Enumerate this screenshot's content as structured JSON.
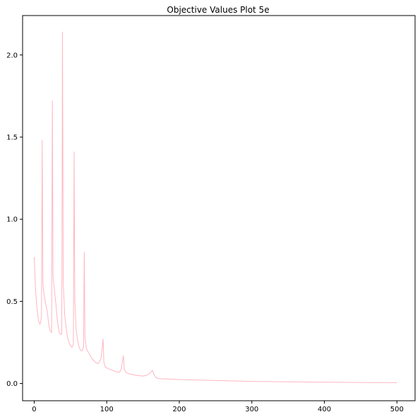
{
  "chart_data": {
    "type": "line",
    "title": "Objective Values Plot 5e",
    "xlabel": "",
    "ylabel": "",
    "xlim": [
      -16,
      525
    ],
    "ylim": [
      -0.105,
      2.24
    ],
    "xticks": [
      0,
      100,
      200,
      300,
      400,
      500
    ],
    "xtick_labels": [
      "0",
      "100",
      "200",
      "300",
      "400",
      "500"
    ],
    "yticks": [
      0.0,
      0.5,
      1.0,
      1.5,
      2.0
    ],
    "ytick_labels": [
      "0.0",
      "0.5",
      "1.0",
      "1.5",
      "2.0"
    ],
    "grid": false,
    "line_color": "#ffb6c1",
    "series": [
      {
        "x": [
          0,
          2,
          4,
          6,
          8,
          10,
          11,
          12,
          14,
          16,
          18,
          20,
          22,
          24,
          25,
          26,
          28,
          30,
          32,
          34,
          36,
          38,
          39,
          40,
          42,
          44,
          46,
          48,
          50,
          52,
          54,
          55,
          56,
          58,
          60,
          62,
          64,
          66,
          68,
          69,
          70,
          72,
          76,
          80,
          84,
          88,
          92,
          95,
          96,
          98,
          102,
          108,
          114,
          118,
          120,
          123,
          124,
          126,
          130,
          140,
          150,
          155,
          160,
          163,
          165,
          168,
          172,
          180,
          200,
          250,
          300,
          350,
          400,
          450,
          500
        ],
        "y": [
          0.77,
          0.56,
          0.45,
          0.38,
          0.36,
          0.4,
          1.48,
          0.6,
          0.53,
          0.48,
          0.44,
          0.36,
          0.32,
          0.31,
          1.72,
          0.65,
          0.56,
          0.48,
          0.38,
          0.32,
          0.3,
          0.3,
          2.14,
          0.62,
          0.42,
          0.34,
          0.28,
          0.25,
          0.23,
          0.22,
          0.24,
          1.41,
          0.5,
          0.32,
          0.26,
          0.22,
          0.2,
          0.2,
          0.22,
          0.8,
          0.28,
          0.21,
          0.18,
          0.15,
          0.13,
          0.12,
          0.15,
          0.27,
          0.13,
          0.1,
          0.09,
          0.08,
          0.07,
          0.07,
          0.09,
          0.17,
          0.09,
          0.07,
          0.06,
          0.05,
          0.045,
          0.05,
          0.065,
          0.08,
          0.055,
          0.035,
          0.03,
          0.028,
          0.024,
          0.018,
          0.013,
          0.01,
          0.008,
          0.006,
          0.005
        ]
      }
    ]
  }
}
